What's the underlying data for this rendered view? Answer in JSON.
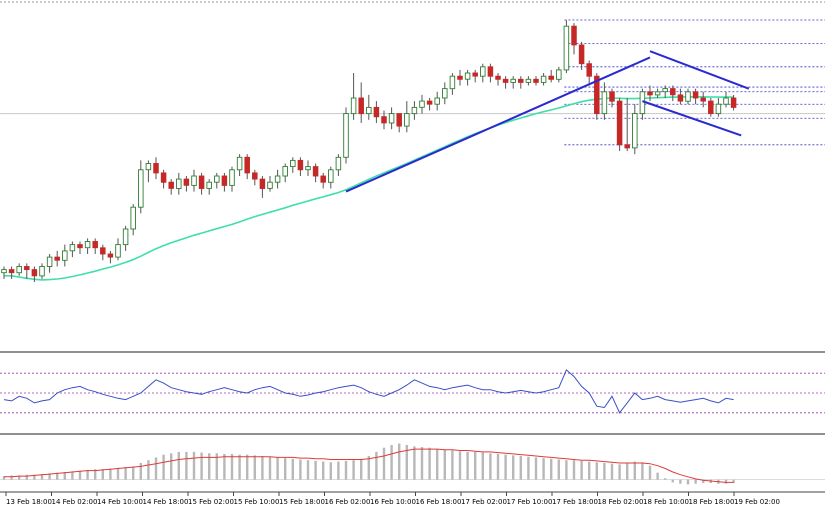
{
  "chart_data": [
    {
      "type": "candlestick",
      "panel": "price",
      "title": "",
      "moving_average": {
        "color": "#3ee0a6"
      },
      "candle_colors": {
        "up": "#2e7d32",
        "down": "#c62828",
        "wick": "#555555"
      },
      "trendlines": {
        "color": "#2a2ad0"
      },
      "levels": {
        "color": "#3030c8"
      },
      "y_range": [
        0,
        100
      ],
      "candles": [
        [
          19,
          20,
          18,
          21,
          17
        ],
        [
          20,
          19,
          18,
          21,
          17
        ],
        [
          19,
          21,
          18,
          22,
          18
        ],
        [
          21,
          20,
          19,
          22,
          17
        ],
        [
          20,
          18,
          17,
          21,
          16
        ],
        [
          18,
          21,
          17,
          22,
          17
        ],
        [
          21,
          24,
          20,
          25,
          19
        ],
        [
          24,
          23,
          22,
          26,
          21
        ],
        [
          23,
          26,
          22,
          28,
          21
        ],
        [
          26,
          28,
          25,
          29,
          24
        ],
        [
          28,
          27,
          26,
          29,
          25
        ],
        [
          27,
          29,
          26,
          30,
          25
        ],
        [
          29,
          27,
          26,
          30,
          25
        ],
        [
          27,
          25,
          24,
          28,
          23
        ],
        [
          25,
          24,
          23,
          26,
          22
        ],
        [
          24,
          28,
          23,
          30,
          23
        ],
        [
          28,
          33,
          27,
          34,
          26
        ],
        [
          33,
          40,
          32,
          41,
          31
        ],
        [
          40,
          52,
          39,
          55,
          38
        ],
        [
          52,
          54,
          50,
          55,
          48
        ],
        [
          54,
          51,
          50,
          56,
          49
        ],
        [
          51,
          48,
          47,
          52,
          46
        ],
        [
          48,
          46,
          45,
          49,
          44
        ],
        [
          46,
          49,
          45,
          51,
          44
        ],
        [
          49,
          47,
          46,
          50,
          45
        ],
        [
          47,
          50,
          46,
          52,
          45
        ],
        [
          50,
          46,
          45,
          51,
          44
        ],
        [
          46,
          48,
          45,
          49,
          44
        ],
        [
          48,
          50,
          47,
          51,
          46
        ],
        [
          50,
          47,
          46,
          51,
          45
        ],
        [
          47,
          52,
          46,
          53,
          45
        ],
        [
          52,
          56,
          51,
          57,
          50
        ],
        [
          56,
          51,
          50,
          57,
          49
        ],
        [
          51,
          49,
          48,
          52,
          47
        ],
        [
          49,
          46,
          45,
          50,
          43
        ],
        [
          46,
          48,
          45,
          50,
          45
        ],
        [
          48,
          50,
          47,
          52,
          46
        ],
        [
          50,
          53,
          49,
          54,
          48
        ],
        [
          53,
          55,
          52,
          56,
          51
        ],
        [
          55,
          52,
          51,
          56,
          50
        ],
        [
          52,
          53,
          51,
          55,
          50
        ],
        [
          53,
          50,
          49,
          54,
          48
        ],
        [
          50,
          48,
          47,
          51,
          46
        ],
        [
          48,
          52,
          47,
          53,
          46
        ],
        [
          52,
          56,
          51,
          57,
          50
        ],
        [
          56,
          70,
          55,
          72,
          54
        ],
        [
          70,
          75,
          69,
          83,
          68
        ],
        [
          75,
          70,
          69,
          80,
          67
        ],
        [
          70,
          72,
          69,
          76,
          68
        ],
        [
          72,
          69,
          68,
          74,
          67
        ],
        [
          69,
          67,
          66,
          71,
          65
        ],
        [
          67,
          70,
          66,
          72,
          65
        ],
        [
          70,
          66,
          65,
          70,
          64
        ],
        [
          66,
          70,
          65,
          74,
          64
        ],
        [
          70,
          72,
          69,
          74,
          68
        ],
        [
          72,
          74,
          71,
          76,
          70
        ],
        [
          74,
          73,
          72,
          75,
          71
        ],
        [
          73,
          75,
          72,
          77,
          71
        ],
        [
          75,
          78,
          74,
          80,
          73
        ],
        [
          78,
          82,
          77,
          83,
          76
        ],
        [
          82,
          81,
          80,
          84,
          79
        ],
        [
          81,
          83,
          80,
          84,
          79
        ],
        [
          83,
          82,
          81,
          84,
          80
        ],
        [
          82,
          85,
          81,
          86,
          80
        ],
        [
          85,
          82,
          81,
          86,
          80
        ],
        [
          82,
          81,
          80,
          83,
          79
        ],
        [
          81,
          80,
          79,
          82,
          78
        ],
        [
          80,
          81,
          79,
          82,
          78
        ],
        [
          81,
          80,
          79,
          82,
          78
        ],
        [
          80,
          81,
          79,
          82,
          79
        ],
        [
          81,
          80,
          79,
          82,
          79
        ],
        [
          80,
          82,
          79,
          83,
          79
        ],
        [
          82,
          81,
          80,
          84,
          80
        ],
        [
          81,
          84,
          80,
          85,
          80
        ],
        [
          84,
          98,
          83,
          100,
          83
        ],
        [
          98,
          92,
          90,
          99,
          89
        ],
        [
          92,
          86,
          85,
          93,
          84
        ],
        [
          86,
          82,
          80,
          87,
          79
        ],
        [
          82,
          70,
          69,
          83,
          68
        ],
        [
          70,
          77,
          69,
          80,
          68
        ],
        [
          77,
          74,
          73,
          78,
          72
        ],
        [
          74,
          60,
          59,
          75,
          58
        ],
        [
          60,
          59,
          58,
          75,
          58
        ],
        [
          59,
          70,
          58,
          73,
          57
        ],
        [
          70,
          77,
          69,
          78,
          68
        ],
        [
          77,
          76,
          75,
          79,
          74
        ],
        [
          76,
          77,
          75,
          78,
          75
        ],
        [
          77,
          78,
          76,
          79,
          75
        ],
        [
          78,
          76,
          75,
          79,
          74
        ],
        [
          76,
          74,
          73,
          78,
          73
        ],
        [
          74,
          77,
          73,
          78,
          73
        ],
        [
          77,
          75,
          74,
          78,
          73
        ],
        [
          75,
          74,
          73,
          77,
          72
        ],
        [
          74,
          70,
          69,
          75,
          69
        ],
        [
          70,
          73,
          69,
          75,
          69
        ],
        [
          73,
          75,
          72,
          77,
          72
        ],
        [
          75,
          72,
          71,
          76,
          71
        ]
      ],
      "ma_values": [
        18,
        18,
        17.6,
        17.2,
        16.9,
        16.7,
        16.8,
        17,
        17.3,
        17.8,
        18.3,
        18.9,
        19.5,
        20.2,
        20.8,
        21.5,
        22.3,
        23.2,
        24.3,
        25.5,
        26.7,
        27.7,
        28.6,
        29.4,
        30.2,
        31,
        31.7,
        32.4,
        33.1,
        33.8,
        34.5,
        35.3,
        36.2,
        37,
        37.7,
        38.4,
        39.1,
        39.8,
        40.6,
        41.3,
        42,
        42.7,
        43.3,
        44,
        44.7,
        45.6,
        46.7,
        47.8,
        48.9,
        50,
        51,
        52,
        53,
        54,
        55.1,
        56.2,
        57.2,
        58.3,
        59.4,
        60.5,
        61.5,
        62.6,
        63.6,
        64.5,
        65.4,
        66.3,
        67.1,
        67.9,
        68.6,
        69.3,
        70,
        70.6,
        71.2,
        71.8,
        72.5,
        73.2,
        73.8,
        74.3,
        74.6,
        74.8,
        75,
        74.9,
        74.8,
        74.8,
        74.9,
        75,
        75.1,
        75.2,
        75.3,
        75.3,
        75.4,
        75.4,
        75.4,
        75.3,
        75.3,
        75.3,
        75.3
      ]
    },
    {
      "type": "line",
      "panel": "oscillator",
      "title": "",
      "color": "#3a4ec8",
      "levels_color": "#9a3ab0",
      "y_range": [
        0,
        100
      ],
      "levels": [
        80,
        50,
        20
      ],
      "values": [
        40,
        38,
        45,
        42,
        35,
        38,
        40,
        50,
        55,
        58,
        60,
        55,
        52,
        48,
        45,
        42,
        40,
        45,
        50,
        60,
        70,
        65,
        58,
        55,
        52,
        50,
        48,
        52,
        55,
        58,
        55,
        52,
        50,
        55,
        58,
        60,
        55,
        50,
        48,
        45,
        47,
        50,
        52,
        55,
        58,
        60,
        62,
        58,
        52,
        48,
        45,
        50,
        55,
        62,
        70,
        65,
        60,
        58,
        55,
        58,
        60,
        62,
        58,
        55,
        55,
        52,
        50,
        52,
        54,
        52,
        50,
        52,
        55,
        58,
        85,
        75,
        60,
        50,
        30,
        28,
        45,
        20,
        35,
        50,
        40,
        42,
        45,
        40,
        38,
        36,
        38,
        40,
        42,
        38,
        35,
        42,
        40
      ]
    },
    {
      "type": "bar",
      "panel": "histogram",
      "title": "",
      "bar_color": "#b8b8b8",
      "signal_color": "#e03a3a",
      "y_range": [
        -15,
        60
      ],
      "values": [
        5,
        6,
        6,
        7,
        7,
        8,
        9,
        10,
        11,
        12,
        13,
        14,
        15,
        15,
        16,
        17,
        18,
        19,
        24,
        28,
        32,
        36,
        38,
        40,
        40,
        40,
        39,
        38,
        38,
        37,
        37,
        36,
        36,
        35,
        34,
        33,
        32,
        31,
        30,
        29,
        28,
        27,
        26,
        25,
        26,
        27,
        28,
        30,
        34,
        40,
        46,
        50,
        52,
        50,
        48,
        47,
        46,
        44,
        43,
        42,
        41,
        40,
        40,
        39,
        38,
        37,
        36,
        35,
        34,
        33,
        32,
        31,
        30,
        29,
        28,
        28,
        27,
        26,
        25,
        24,
        23,
        22,
        24,
        26,
        25,
        20,
        10,
        2,
        -4,
        -6,
        -7,
        -6,
        -5,
        -5,
        -6,
        -6,
        -5
      ],
      "signal": [
        4,
        4,
        5,
        5,
        6,
        7,
        8,
        9,
        10,
        11,
        12,
        13,
        13,
        14,
        15,
        16,
        17,
        18,
        19,
        21,
        23,
        25,
        27,
        29,
        30,
        31,
        32,
        32,
        32,
        33,
        33,
        33,
        33,
        33,
        33,
        33,
        32,
        32,
        32,
        31,
        31,
        30,
        30,
        29,
        29,
        29,
        29,
        29,
        30,
        32,
        34,
        37,
        40,
        42,
        44,
        44,
        44,
        44,
        43,
        43,
        42,
        42,
        41,
        40,
        40,
        39,
        38,
        37,
        36,
        35,
        34,
        33,
        32,
        31,
        30,
        29,
        28,
        28,
        27,
        26,
        25,
        24,
        24,
        24,
        24,
        23,
        20,
        16,
        11,
        7,
        4,
        1,
        -1,
        -2,
        -3,
        -4,
        -4
      ]
    }
  ],
  "x_axis": {
    "tick_labels": [
      "13 Feb 18:00",
      "14 Feb 02:00",
      "14 Feb 10:00",
      "14 Feb 18:00",
      "15 Feb 02:00",
      "15 Feb 10:00",
      "15 Feb 18:00",
      "16 Feb 02:00",
      "16 Feb 10:00",
      "16 Feb 18:00",
      "17 Feb 02:00",
      "17 Feb 10:00",
      "17 Feb 18:00",
      "18 Feb 02:00",
      "18 Feb 10:00",
      "18 Feb 18:00",
      "19 Feb 02:00"
    ]
  }
}
